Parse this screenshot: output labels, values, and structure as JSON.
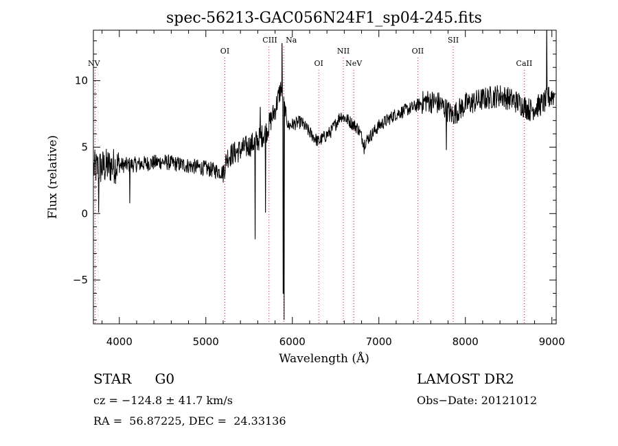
{
  "chart_data": {
    "type": "line",
    "title": "spec-56213-GAC056N24F1_sp04-245.fits",
    "xlabel": "Wavelength (Å)",
    "ylabel": "Flux (relative)",
    "xlim": [
      3700,
      9050
    ],
    "ylim": [
      -8.3,
      13.8
    ],
    "x_ticks": [
      "4000",
      "5000",
      "6000",
      "7000",
      "8000",
      "9000"
    ],
    "y_ticks": [
      "−5",
      "0",
      "5",
      "10"
    ],
    "grid": false,
    "line_color": "#000000",
    "marker_color": "#ff0000",
    "line_markers": [
      {
        "label": "NV",
        "x": 3720,
        "row": 3
      },
      {
        "label": "OI",
        "x": 5220,
        "row": 2
      },
      {
        "label": "CIII",
        "x": 5730,
        "row": 1
      },
      {
        "label": "Na",
        "x": 5900,
        "row": 1
      },
      {
        "label": "OI",
        "x": 6305,
        "row": 3
      },
      {
        "label": "NII",
        "x": 6590,
        "row": 2
      },
      {
        "label": "NeV",
        "x": 6710,
        "row": 3
      },
      {
        "label": "OII",
        "x": 7450,
        "row": 2
      },
      {
        "label": "SII",
        "x": 7860,
        "row": 1
      },
      {
        "label": "CaII",
        "x": 8680,
        "row": 3
      }
    ],
    "spectrum": {
      "anchors": [
        [
          3720,
          3.4
        ],
        [
          3900,
          3.6
        ],
        [
          4200,
          3.7
        ],
        [
          4500,
          3.9
        ],
        [
          4800,
          3.6
        ],
        [
          5000,
          3.4
        ],
        [
          5200,
          3.1
        ],
        [
          5250,
          4.3
        ],
        [
          5500,
          5.1
        ],
        [
          5600,
          5.5
        ],
        [
          5700,
          6.2
        ],
        [
          5800,
          7.8
        ],
        [
          5870,
          9.5
        ],
        [
          5950,
          6.6
        ],
        [
          6100,
          6.9
        ],
        [
          6200,
          6.1
        ],
        [
          6300,
          5.4
        ],
        [
          6450,
          6.2
        ],
        [
          6560,
          7.4
        ],
        [
          6650,
          7.0
        ],
        [
          6760,
          6.4
        ],
        [
          6830,
          5.3
        ],
        [
          7000,
          6.6
        ],
        [
          7200,
          7.5
        ],
        [
          7400,
          8.0
        ],
        [
          7550,
          8.5
        ],
        [
          7700,
          8.3
        ],
        [
          7850,
          7.4
        ],
        [
          8000,
          8.2
        ],
        [
          8200,
          8.6
        ],
        [
          8400,
          8.9
        ],
        [
          8600,
          8.4
        ],
        [
          8750,
          7.8
        ],
        [
          8900,
          8.3
        ],
        [
          9000,
          8.9
        ]
      ],
      "features": [
        {
          "x": 3760,
          "y": 0.1
        },
        {
          "x": 4120,
          "y": 0.8
        },
        {
          "x": 5570,
          "y": -1.9
        },
        {
          "x": 5630,
          "y": 8.0
        },
        {
          "x": 5690,
          "y": 0.1
        },
        {
          "x": 5880,
          "y": 12.8
        },
        {
          "x": 5895,
          "y": -6.0
        },
        {
          "x": 5905,
          "y": -8.0
        },
        {
          "x": 6830,
          "y": 4.5
        },
        {
          "x": 7780,
          "y": 4.8
        },
        {
          "x": 8940,
          "y": 13.8
        },
        {
          "x": 8960,
          "y": 9.5
        }
      ],
      "noise": [
        {
          "from": 3700,
          "to": 4000,
          "amp": 1.4
        },
        {
          "from": 4000,
          "to": 5200,
          "amp": 0.6
        },
        {
          "from": 5200,
          "to": 5900,
          "amp": 0.9
        },
        {
          "from": 5900,
          "to": 7500,
          "amp": 0.5
        },
        {
          "from": 7500,
          "to": 9050,
          "amp": 0.9
        }
      ]
    }
  },
  "info": {
    "object_class": "STAR",
    "subclass": "G0",
    "survey": "LAMOST DR2",
    "cz_line": "cz = −124.8 ± 41.7 km/s",
    "obs_date": "Obs−Date: 20121012",
    "coords": "RA =  56.87225, DEC =  24.33136"
  }
}
